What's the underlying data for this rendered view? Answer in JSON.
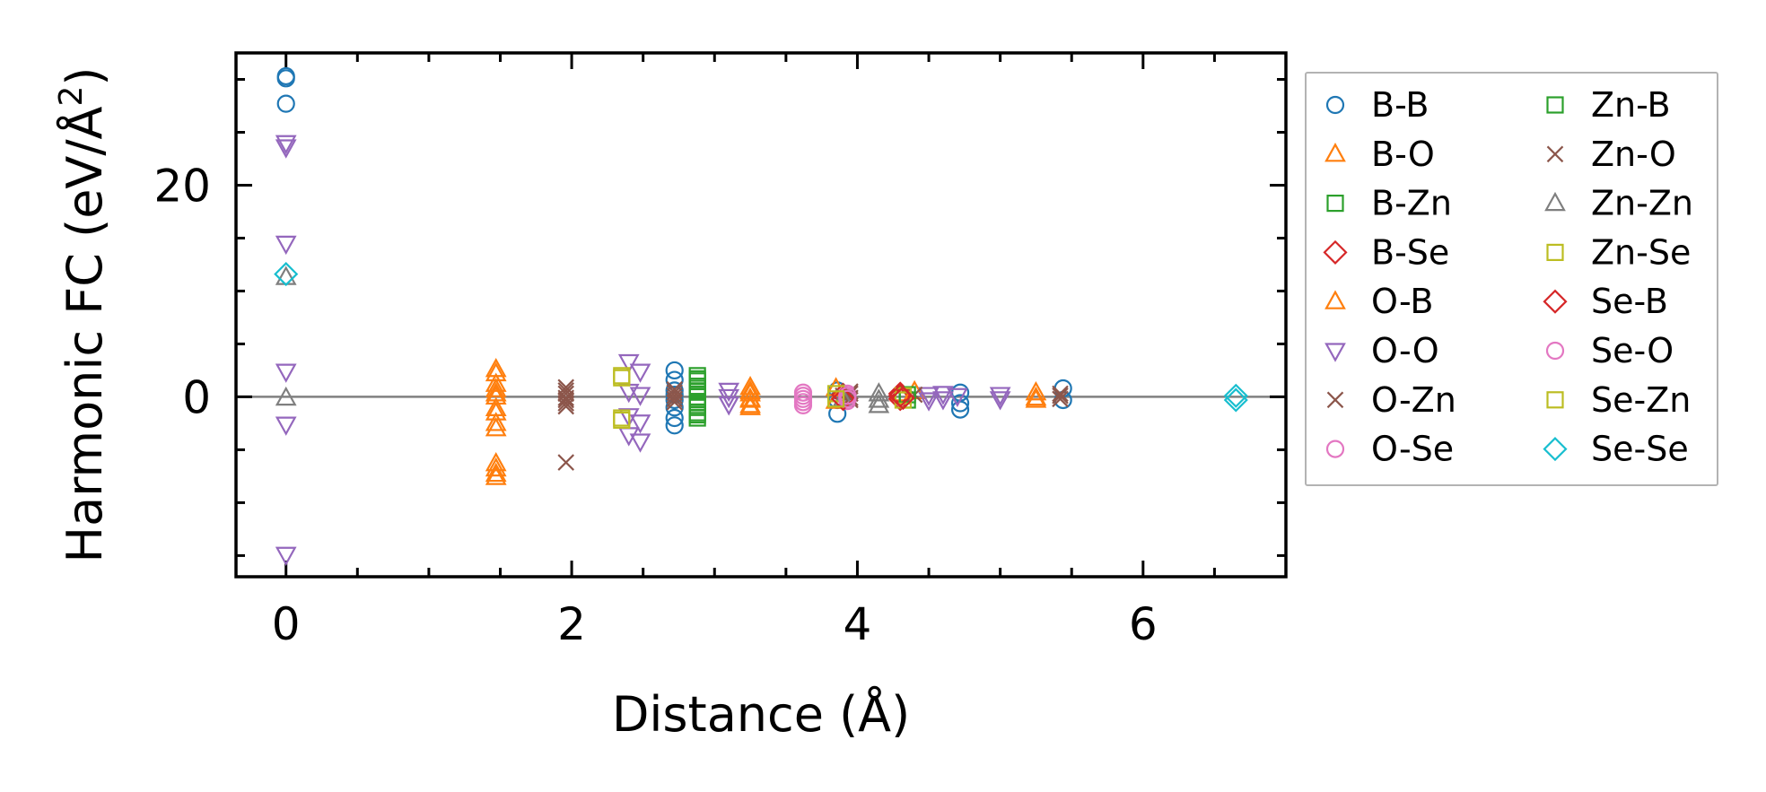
{
  "chart_data": {
    "type": "scatter",
    "xlabel": "Distance (Å)",
    "ylabel_prefix": "Harmonic FC (eV/Å",
    "ylabel_sup": "2",
    "ylabel_suffix": ")",
    "xlim": [
      -0.35,
      7.0
    ],
    "ylim": [
      -17.0,
      32.5
    ],
    "x_ticks": [
      0,
      2,
      4,
      6
    ],
    "x_tick_labels": [
      "0",
      "2",
      "4",
      "6"
    ],
    "x_minor_ticks": [
      0.5,
      1,
      1.5,
      2.5,
      3,
      3.5,
      4.5,
      5,
      5.5,
      6.5
    ],
    "y_ticks": [
      0,
      20
    ],
    "y_tick_labels": [
      "0",
      "20"
    ],
    "y_minor_ticks": [
      -15,
      -10,
      -5,
      5,
      10,
      15,
      25,
      30
    ],
    "reference_line_y": 0,
    "legend_position": "outside-right",
    "series": [
      {
        "name": "B-B",
        "marker": "circle",
        "color": "#1f77b4",
        "x": [
          0,
          0,
          0,
          2.72,
          2.72,
          2.72,
          2.72,
          2.72,
          2.72,
          2.72,
          2.72,
          3.86,
          3.86,
          3.86,
          4.72,
          4.72,
          4.72,
          5.44,
          5.44
        ],
        "y": [
          30.1,
          27.7,
          30.3,
          2.5,
          1.6,
          0.6,
          0.2,
          -0.3,
          -1.0,
          -2.0,
          -2.7,
          0.6,
          -0.3,
          -1.6,
          0.4,
          -0.6,
          -1.2,
          0.8,
          -0.3
        ]
      },
      {
        "name": "B-O",
        "marker": "triangle-up",
        "color": "#ff7f0e",
        "x": [
          1.47,
          1.47,
          1.47,
          1.47,
          1.47,
          1.47,
          1.47,
          3.25,
          3.25,
          3.25,
          3.25,
          3.85,
          3.85,
          4.3,
          5.25,
          5.25
        ],
        "y": [
          2.6,
          1.2,
          0,
          -1.1,
          -2.5,
          -6.3,
          -7.3,
          0.9,
          0.3,
          -0.3,
          -0.8,
          0.8,
          -0.4,
          0.3,
          0.4,
          -0.3
        ]
      },
      {
        "name": "B-Zn",
        "marker": "square",
        "color": "#2ca02c",
        "x": [
          2.88,
          2.88,
          2.88,
          2.88,
          2.88,
          2.88,
          2.88,
          2.88,
          2.88
        ],
        "y": [
          2.0,
          1.5,
          1.0,
          0.5,
          0,
          -0.5,
          -1.0,
          -1.5,
          -2.0
        ]
      },
      {
        "name": "B-Se",
        "marker": "diamond",
        "color": "#d62728",
        "x": [
          3.9,
          4.3,
          4.3
        ],
        "y": [
          0.2,
          0.3,
          -0.2
        ]
      },
      {
        "name": "O-B",
        "marker": "triangle-up",
        "color": "#ff7f0e",
        "x": [
          1.47,
          1.47,
          1.47,
          1.47,
          1.47,
          1.47,
          1.47,
          3.25,
          3.25,
          3.25,
          4.4,
          5.25
        ],
        "y": [
          2.2,
          0.7,
          0.3,
          -1.5,
          -3.0,
          -6.8,
          -7.6,
          0.5,
          -0.2,
          -1.0,
          0.5,
          -0.1
        ]
      },
      {
        "name": "O-O",
        "marker": "triangle-down",
        "color": "#9467bd",
        "x": [
          0,
          0,
          0,
          0,
          0,
          0,
          2.4,
          2.4,
          2.4,
          2.4,
          2.48,
          2.48,
          2.48,
          2.48,
          3.1,
          3.1,
          3.1,
          4.5,
          4.5,
          4.6,
          4.6,
          4.7,
          5.0,
          5.0
        ],
        "y": [
          24.0,
          23.6,
          14.5,
          2.4,
          -2.6,
          -14.9,
          3.3,
          0.5,
          -1.8,
          -3.6,
          2.4,
          0.2,
          -2.4,
          -4.2,
          0.6,
          0,
          -0.7,
          0.2,
          -0.3,
          0.3,
          -0.2,
          0.1,
          0.2,
          -0.2
        ]
      },
      {
        "name": "O-Zn",
        "marker": "x",
        "color": "#8c564b",
        "x": [
          1.96,
          1.96,
          1.96,
          1.96,
          1.96,
          2.72,
          2.72,
          2.72,
          3.95,
          3.95,
          3.9,
          4.4,
          5.42
        ],
        "y": [
          0.9,
          0.3,
          -0.3,
          -0.9,
          -6.2,
          0.7,
          0.1,
          -0.5,
          0.5,
          -0.3,
          0.1,
          0.2,
          0.1
        ]
      },
      {
        "name": "O-Se",
        "marker": "circle",
        "color": "#e377c2",
        "x": [
          3.62,
          3.62,
          3.62,
          3.93,
          3.93,
          3.93
        ],
        "y": [
          0.4,
          -0.2,
          -0.8,
          0.3,
          0,
          -0.4
        ]
      },
      {
        "name": "Zn-B",
        "marker": "square",
        "color": "#2ca02c",
        "x": [
          2.88,
          2.88,
          2.88,
          2.88,
          4.35,
          4.35
        ],
        "y": [
          1.7,
          0.8,
          -0.8,
          -1.7,
          0.2,
          -0.3
        ]
      },
      {
        "name": "Zn-O",
        "marker": "x",
        "color": "#8c564b",
        "x": [
          1.96,
          1.96,
          1.96,
          2.72,
          2.72,
          3.95,
          3.95,
          5.42,
          5.42
        ],
        "y": [
          0.6,
          -0.1,
          -0.6,
          0.4,
          -0.2,
          0.3,
          -0.1,
          0.3,
          -0.2
        ]
      },
      {
        "name": "Zn-Zn",
        "marker": "triangle-up",
        "color": "#7f7f7f",
        "x": [
          0,
          0,
          3.9,
          4.15,
          4.15,
          4.15
        ],
        "y": [
          11.3,
          -0.1,
          -0.2,
          0.3,
          -0.3,
          -0.8
        ]
      },
      {
        "name": "Zn-Se",
        "marker": "square",
        "color": "#bcbd22",
        "x": [
          2.35,
          2.35,
          3.85,
          4.32,
          4.32
        ],
        "y": [
          1.8,
          -2.2,
          0.3,
          0.1,
          -0.3
        ]
      },
      {
        "name": "Se-B",
        "marker": "diamond",
        "color": "#d62728",
        "x": [
          3.9,
          4.3,
          4.32
        ],
        "y": [
          -0.2,
          0.1,
          -0.1
        ]
      },
      {
        "name": "Se-O",
        "marker": "circle",
        "color": "#e377c2",
        "x": [
          3.62,
          3.62,
          3.93,
          3.93
        ],
        "y": [
          0.1,
          -0.5,
          0.1,
          -0.2
        ]
      },
      {
        "name": "Se-Zn",
        "marker": "square",
        "color": "#bcbd22",
        "x": [
          2.35,
          2.35,
          3.85
        ],
        "y": [
          2.0,
          -2.0,
          -0.2
        ]
      },
      {
        "name": "Se-Se",
        "marker": "diamond",
        "color": "#17becf",
        "x": [
          0,
          6.65,
          6.65
        ],
        "y": [
          11.6,
          0.1,
          -0.3
        ]
      }
    ]
  }
}
